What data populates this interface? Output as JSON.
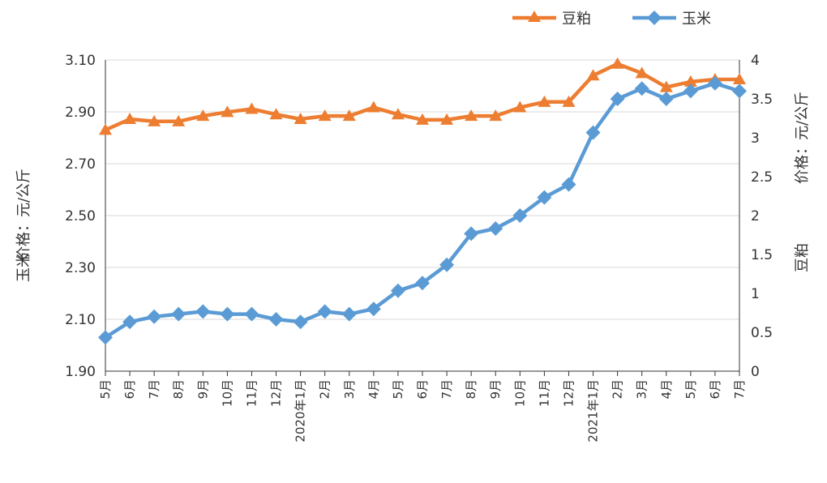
{
  "chart_data": {
    "type": "line",
    "categories": [
      "5月",
      "6月",
      "7月",
      "8月",
      "9月",
      "10月",
      "11月",
      "12月",
      "2020年1月",
      "2月",
      "3月",
      "4月",
      "5月",
      "6月",
      "7月",
      "8月",
      "9月",
      "10月",
      "11月",
      "12月",
      "2021年1月",
      "2月",
      "3月",
      "4月",
      "5月",
      "6月",
      "7月"
    ],
    "series": [
      {
        "name": "豆粕",
        "axis": "right",
        "color": "#ED7D31",
        "marker": "triangle",
        "values": [
          3.1,
          3.24,
          3.21,
          3.21,
          3.28,
          3.33,
          3.37,
          3.3,
          3.24,
          3.28,
          3.28,
          3.39,
          3.3,
          3.23,
          3.23,
          3.28,
          3.28,
          3.39,
          3.46,
          3.46,
          3.8,
          3.95,
          3.83,
          3.65,
          3.72,
          3.75,
          3.75
        ]
      },
      {
        "name": "玉米",
        "axis": "left",
        "color": "#5B9BD5",
        "marker": "diamond",
        "values": [
          2.03,
          2.09,
          2.11,
          2.12,
          2.13,
          2.12,
          2.12,
          2.1,
          2.09,
          2.13,
          2.12,
          2.14,
          2.21,
          2.24,
          2.31,
          2.43,
          2.45,
          2.5,
          2.57,
          2.62,
          2.82,
          2.95,
          2.99,
          2.95,
          2.98,
          3.01,
          2.98
        ]
      }
    ],
    "left_axis": {
      "ylim": [
        1.9,
        3.1
      ],
      "ticks": [
        "1.90",
        "2.10",
        "2.30",
        "2.50",
        "2.70",
        "2.90",
        "3.10"
      ],
      "label_parts": [
        "玉米",
        "价格：元/公斤"
      ]
    },
    "right_axis": {
      "ylim": [
        0,
        4
      ],
      "ticks": [
        "0",
        "0.5",
        "1",
        "1.5",
        "2",
        "2.5",
        "3",
        "3.5",
        "4"
      ],
      "label_parts": [
        "豆粕",
        "价格：元/公斤"
      ]
    },
    "grid": "horizontal",
    "legend_position": "top-right"
  }
}
